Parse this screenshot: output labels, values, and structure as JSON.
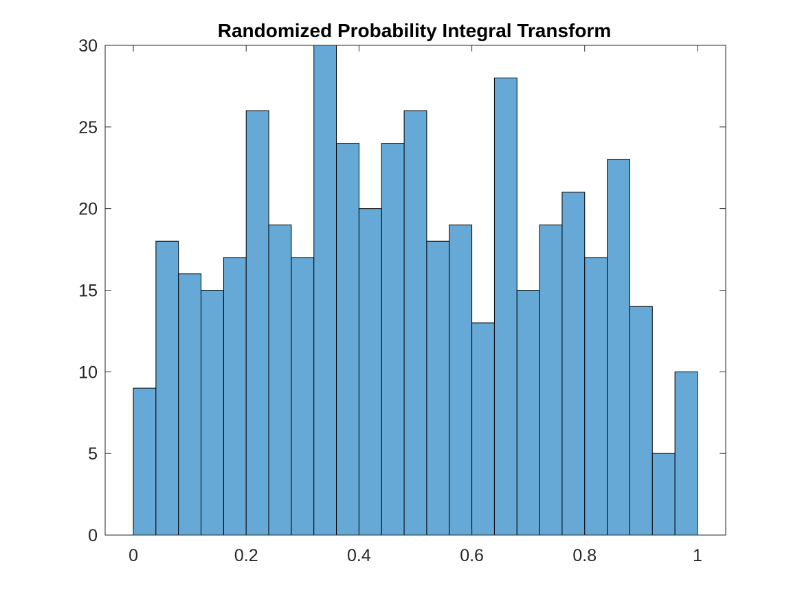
{
  "chart_data": {
    "type": "bar",
    "title": "Randomized Probability Integral Transform",
    "xlabel": "",
    "ylabel": "",
    "xlim": [
      -0.05,
      1.05
    ],
    "ylim": [
      0,
      30
    ],
    "xticks": [
      0,
      0.2,
      0.4,
      0.6,
      0.8,
      1
    ],
    "xtick_labels": [
      "0",
      "0.2",
      "0.4",
      "0.6",
      "0.8",
      "1"
    ],
    "yticks": [
      0,
      5,
      10,
      15,
      20,
      25,
      30
    ],
    "ytick_labels": [
      "0",
      "5",
      "10",
      "15",
      "20",
      "25",
      "30"
    ],
    "bin_edges": [
      0,
      0.04,
      0.08,
      0.12,
      0.16,
      0.2,
      0.24,
      0.28,
      0.32,
      0.36,
      0.4,
      0.44,
      0.48,
      0.52,
      0.56,
      0.6,
      0.64,
      0.68,
      0.72,
      0.76,
      0.8,
      0.84,
      0.88,
      0.92,
      0.96,
      1.0
    ],
    "values": [
      9,
      18,
      16,
      15,
      17,
      26,
      19,
      17,
      30,
      24,
      20,
      24,
      26,
      18,
      19,
      13,
      28,
      15,
      19,
      21,
      17,
      23,
      14,
      5,
      10
    ],
    "grid": false,
    "bar_color": "#66a9d7",
    "edge_color": "#000000"
  }
}
